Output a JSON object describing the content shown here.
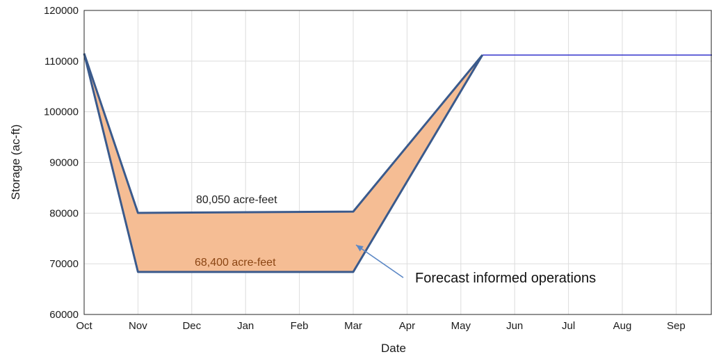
{
  "chart_data": {
    "type": "area",
    "title": "",
    "xlabel": "Date",
    "ylabel": "Storage (ac-ft)",
    "x_ticks": [
      "Oct",
      "Nov",
      "Dec",
      "Jan",
      "Feb",
      "Mar",
      "Apr",
      "May",
      "Jun",
      "Jul",
      "Aug",
      "Sep"
    ],
    "x_range": [
      "Oct",
      "Oct (next year)"
    ],
    "y_ticks": [
      60000,
      70000,
      80000,
      90000,
      100000,
      110000,
      120000
    ],
    "y_tick_labels": [
      "60000",
      "70000",
      "80000",
      "90000",
      "100000",
      "110000",
      "120000"
    ],
    "ylim": [
      60000,
      120000
    ],
    "grid": true,
    "series": [
      {
        "x": [
          "Oct 1",
          "Nov 1",
          "Mar 1",
          "May 13",
          "Oct 1"
        ],
        "y": [
          111500,
          80050,
          80300,
          111200,
          111200
        ],
        "color": "#3a5a8c"
      },
      {
        "x": [
          "Oct 1",
          "Nov 1",
          "Mar 1",
          "May 13",
          "Oct 1"
        ],
        "y": [
          111500,
          68400,
          68400,
          111200,
          111200
        ],
        "color": "#3a5a8c"
      }
    ],
    "fill": {
      "between": [
        0,
        1
      ],
      "color": "#f5bd94"
    },
    "flat_line_color": "#3333cc",
    "annotations": {
      "upper": "80,050 acre-feet",
      "lower": "68,400 acre-feet",
      "region": "Forecast informed operations"
    },
    "colors": {
      "upper_text": "#222222",
      "lower_text": "#8b4513",
      "arrow": "#5b87c5"
    }
  }
}
